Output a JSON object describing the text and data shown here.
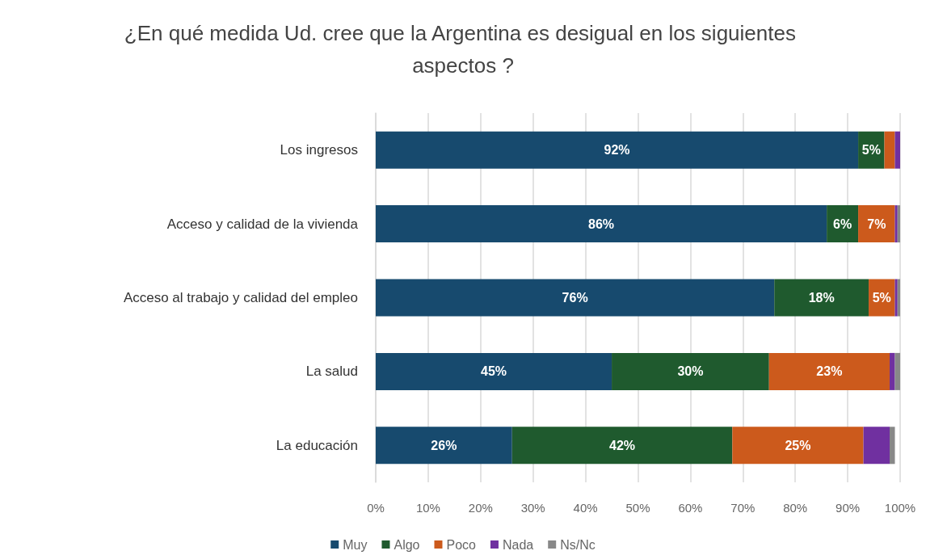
{
  "chart_data": {
    "type": "bar",
    "title": "¿En qué medida Ud. cree que la Argentina es desigual en los siguientes aspectos ?",
    "orientation": "horizontal",
    "stacked": true,
    "categories": [
      "Los ingresos",
      "Acceso y calidad de la vivienda",
      "Acceso al trabajo y calidad del empleo",
      "La salud",
      "La educación"
    ],
    "series": [
      {
        "name": "Muy",
        "color": "#174a6e",
        "values": [
          92,
          86,
          76,
          45,
          26
        ],
        "value_labels": [
          "92%",
          "86%",
          "76%",
          "45%",
          "26%"
        ]
      },
      {
        "name": "Algo",
        "color": "#1f5a2e",
        "values": [
          5,
          6,
          18,
          30,
          42
        ],
        "value_labels": [
          "5%",
          "6%",
          "18%",
          "30%",
          "42%"
        ]
      },
      {
        "name": "Poco",
        "color": "#cc5a1c",
        "values": [
          2,
          7,
          5,
          23,
          25
        ],
        "value_labels": [
          null,
          "7%",
          "5%",
          "23%",
          "25%"
        ]
      },
      {
        "name": "Nada",
        "color": "#7030a0",
        "values": [
          1,
          0.5,
          0.5,
          1,
          5
        ],
        "value_labels": [
          null,
          null,
          null,
          null,
          null
        ]
      },
      {
        "name": "Ns/Nc",
        "color": "#888888",
        "values": [
          0,
          0.5,
          0.5,
          1,
          1
        ],
        "value_labels": [
          null,
          null,
          null,
          null,
          null
        ]
      }
    ],
    "xlim": [
      0,
      100
    ],
    "xticks": [
      {
        "value": 0,
        "label": "0%"
      },
      {
        "value": 10,
        "label": "10%"
      },
      {
        "value": 20,
        "label": "20%"
      },
      {
        "value": 30,
        "label": "30%"
      },
      {
        "value": 40,
        "label": "40%"
      },
      {
        "value": 50,
        "label": "50%"
      },
      {
        "value": 60,
        "label": "60%"
      },
      {
        "value": 70,
        "label": "70%"
      },
      {
        "value": 80,
        "label": "80%"
      },
      {
        "value": 90,
        "label": "90%"
      },
      {
        "value": 100,
        "label": "100%"
      }
    ],
    "grid": "x",
    "legend": "bottom"
  }
}
